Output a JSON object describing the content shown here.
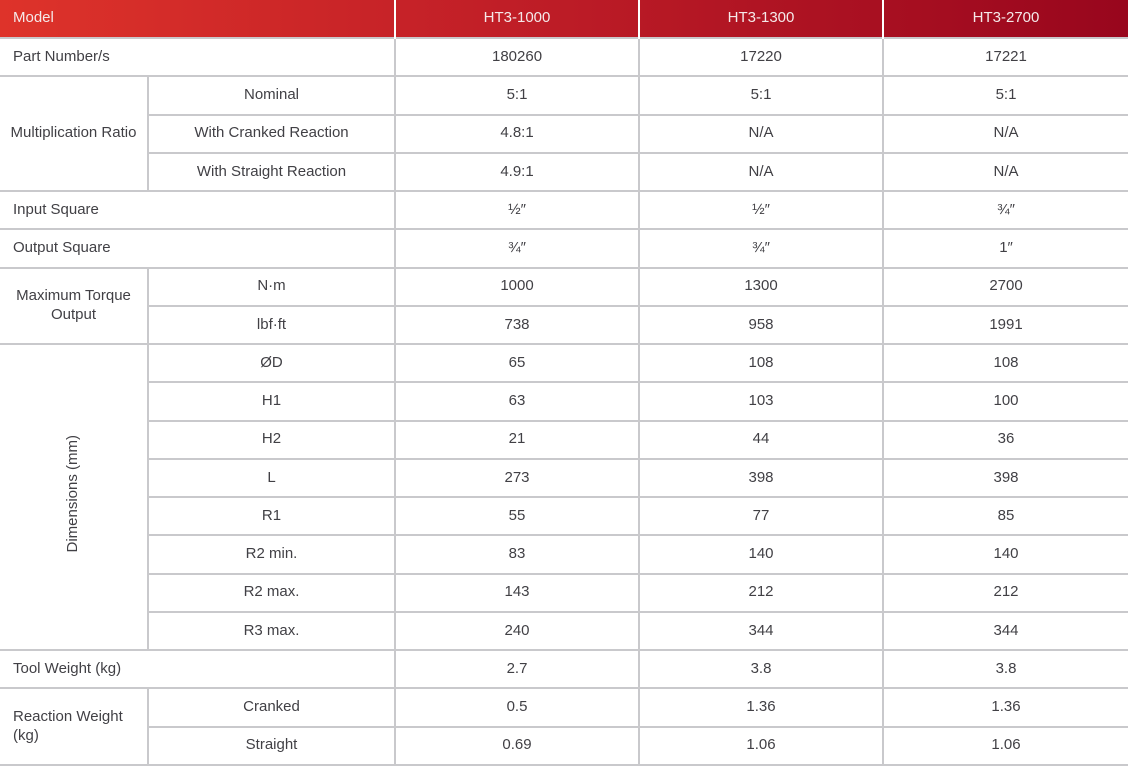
{
  "table": {
    "header": {
      "model_label": "Model",
      "columns": [
        "HT3-1000",
        "HT3-1300",
        "HT3-2700"
      ]
    },
    "sections": [
      {
        "label": "Part Number/s",
        "rows": [
          {
            "values": [
              "180260",
              "17220",
              "17221"
            ]
          }
        ]
      },
      {
        "label": "Multiplication Ratio",
        "rows": [
          {
            "sub": "Nominal",
            "values": [
              "5:1",
              "5:1",
              "5:1"
            ]
          },
          {
            "sub": "With Cranked Reaction",
            "values": [
              "4.8:1",
              "N/A",
              "N/A"
            ]
          },
          {
            "sub": "With Straight Reaction",
            "values": [
              "4.9:1",
              "N/A",
              "N/A"
            ]
          }
        ]
      },
      {
        "label": "Input Square",
        "rows": [
          {
            "values": [
              "½″",
              "½″",
              "¾″"
            ]
          }
        ]
      },
      {
        "label": "Output Square",
        "rows": [
          {
            "values": [
              "¾″",
              "¾″",
              "1″"
            ]
          }
        ]
      },
      {
        "label": "Maximum Torque Output",
        "rows": [
          {
            "sub": "N·m",
            "values": [
              "1000",
              "1300",
              "2700"
            ]
          },
          {
            "sub": "lbf·ft",
            "values": [
              "738",
              "958",
              "1991"
            ]
          }
        ]
      },
      {
        "label": "Dimensions (mm)",
        "vertical_label": true,
        "rows": [
          {
            "sub": "ØD",
            "values": [
              "65",
              "108",
              "108"
            ]
          },
          {
            "sub": "H1",
            "values": [
              "63",
              "103",
              "100"
            ]
          },
          {
            "sub": "H2",
            "values": [
              "21",
              "44",
              "36"
            ]
          },
          {
            "sub": "L",
            "values": [
              "273",
              "398",
              "398"
            ]
          },
          {
            "sub": "R1",
            "values": [
              "55",
              "77",
              "85"
            ]
          },
          {
            "sub": "R2 min.",
            "values": [
              "83",
              "140",
              "140"
            ]
          },
          {
            "sub": "R2 max.",
            "values": [
              "143",
              "212",
              "212"
            ]
          },
          {
            "sub": "R3 max.",
            "values": [
              "240",
              "344",
              "344"
            ]
          }
        ]
      },
      {
        "label": "Tool Weight (kg)",
        "rows": [
          {
            "values": [
              "2.7",
              "3.8",
              "3.8"
            ]
          }
        ]
      },
      {
        "label": "Reaction Weight (kg)",
        "align_label_left": true,
        "rows": [
          {
            "sub": "Cranked",
            "values": [
              "0.5",
              "1.36",
              "1.36"
            ]
          },
          {
            "sub": "Straight",
            "values": [
              "0.69",
              "1.06",
              "1.06"
            ]
          }
        ]
      }
    ],
    "colors": {
      "header_gradient_left": "#de332a",
      "header_gradient_mid": "#c01e27",
      "header_gradient_right": "#98061d",
      "header_text": "#f5e9e9",
      "body_text": "#414045",
      "grid_line": "#c9c9cc"
    }
  }
}
